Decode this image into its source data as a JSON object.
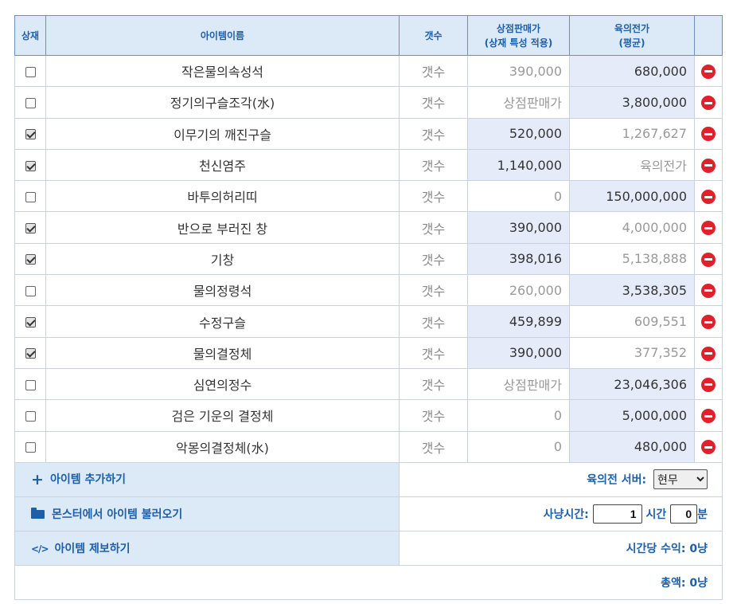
{
  "header": {
    "col_shop": "상재",
    "col_name": "아이템이름",
    "col_count": "갯수",
    "col_shop_price_line1": "상점판매가",
    "col_shop_price_line2": "(상재 특성 적용)",
    "col_avg_price_line1": "육의전가",
    "col_avg_price_line2": "(평균)"
  },
  "rows": [
    {
      "checked": false,
      "name": "작은물의속성석",
      "count": "갯수",
      "shop": "390,000",
      "avg": "680,000",
      "hl": "avg"
    },
    {
      "checked": false,
      "name": "정기의구슬조각(水)",
      "count": "갯수",
      "shop": "상점판매가",
      "avg": "3,800,000",
      "hl": "avg"
    },
    {
      "checked": true,
      "name": "이무기의 깨진구슬",
      "count": "갯수",
      "shop": "520,000",
      "avg": "1,267,627",
      "hl": "shop"
    },
    {
      "checked": true,
      "name": "천신염주",
      "count": "갯수",
      "shop": "1,140,000",
      "avg": "육의전가",
      "hl": "shop"
    },
    {
      "checked": false,
      "name": "바투의허리띠",
      "count": "갯수",
      "shop": "0",
      "avg": "150,000,000",
      "hl": "avg"
    },
    {
      "checked": true,
      "name": "반으로 부러진 창",
      "count": "갯수",
      "shop": "390,000",
      "avg": "4,000,000",
      "hl": "shop"
    },
    {
      "checked": true,
      "name": "기창",
      "count": "갯수",
      "shop": "398,016",
      "avg": "5,138,888",
      "hl": "shop"
    },
    {
      "checked": false,
      "name": "물의정령석",
      "count": "갯수",
      "shop": "260,000",
      "avg": "3,538,305",
      "hl": "avg"
    },
    {
      "checked": true,
      "name": "수정구슬",
      "count": "갯수",
      "shop": "459,899",
      "avg": "609,551",
      "hl": "shop"
    },
    {
      "checked": true,
      "name": "물의결정체",
      "count": "갯수",
      "shop": "390,000",
      "avg": "377,352",
      "hl": "shop"
    },
    {
      "checked": false,
      "name": "심연의정수",
      "count": "갯수",
      "shop": "상점판매가",
      "avg": "23,046,306",
      "hl": "avg"
    },
    {
      "checked": false,
      "name": "검은 기운의 결정체",
      "count": "갯수",
      "shop": "0",
      "avg": "5,000,000",
      "hl": "avg"
    },
    {
      "checked": false,
      "name": "악몽의결정체(水)",
      "count": "갯수",
      "shop": "0",
      "avg": "480,000",
      "hl": "avg"
    }
  ],
  "footer": {
    "add_item": "아이템 추가하기",
    "load_monster": "몬스터에서 아이템 불러오기",
    "report_item": "아이템 제보하기",
    "server_label": "육의전 서버:",
    "server_value": "현무",
    "hunt_label": "사냥시간:",
    "hours_value": "1",
    "hours_label": "시간",
    "minutes_value": "0",
    "minutes_label": "분",
    "hourly_income": "시간당 수익: 0냥",
    "total": "총액: 0냥"
  },
  "icons": {
    "add": "plus-icon",
    "load": "folder-open-icon",
    "report": "code-icon",
    "delete": "remove-circle-icon"
  },
  "colors": {
    "accent": "#1d5fa8",
    "header_bg": "#dce9f7",
    "highlight_bg": "#e6ebf9",
    "delete": "#e0202a"
  }
}
